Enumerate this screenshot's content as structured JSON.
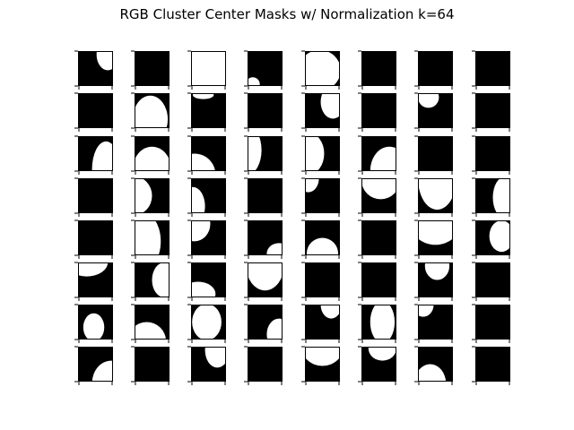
{
  "chart_data": {
    "type": "mask-grid",
    "title": "RGB Cluster Center Masks w/ Normalization k=64",
    "rows": 8,
    "cols": 8,
    "k": 64,
    "background_color": "#000000",
    "mask_color": "#ffffff",
    "panels": [
      [
        {
          "shapes": [
            {
              "k": "e",
              "cx": 0.85,
              "cy": 0.1,
              "rx": 0.32,
              "ry": 0.45
            }
          ]
        },
        {
          "shapes": []
        },
        {
          "shapes": [
            {
              "k": "r",
              "x0": 0,
              "y0": 0,
              "x1": 1,
              "y1": 1
            }
          ]
        },
        {
          "shapes": [
            {
              "k": "e",
              "cx": 0.15,
              "cy": 0.95,
              "rx": 0.2,
              "ry": 0.2
            }
          ]
        },
        {
          "shapes": [
            {
              "k": "e",
              "cx": 0.42,
              "cy": 0.55,
              "rx": 0.6,
              "ry": 0.58
            }
          ]
        },
        {
          "shapes": []
        },
        {
          "shapes": []
        },
        {
          "shapes": []
        }
      ],
      [
        {
          "shapes": []
        },
        {
          "shapes": [
            {
              "k": "e",
              "cx": 0.45,
              "cy": 0.75,
              "rx": 0.5,
              "ry": 0.68
            }
          ]
        },
        {
          "shapes": [
            {
              "k": "e",
              "cx": 0.35,
              "cy": 0.05,
              "rx": 0.3,
              "ry": 0.12
            }
          ]
        },
        {
          "shapes": []
        },
        {
          "shapes": [
            {
              "k": "e",
              "cx": 0.8,
              "cy": 0.25,
              "rx": 0.35,
              "ry": 0.48
            }
          ]
        },
        {
          "shapes": []
        },
        {
          "shapes": [
            {
              "k": "e",
              "cx": 0.3,
              "cy": 0.12,
              "rx": 0.3,
              "ry": 0.3
            }
          ]
        },
        {
          "shapes": []
        }
      ],
      [
        {
          "shapes": [
            {
              "k": "e",
              "cx": 0.8,
              "cy": 0.95,
              "rx": 0.4,
              "ry": 0.8
            }
          ]
        },
        {
          "shapes": [
            {
              "k": "e",
              "cx": 0.5,
              "cy": 0.95,
              "rx": 0.55,
              "ry": 0.65
            }
          ]
        },
        {
          "shapes": [
            {
              "k": "e",
              "cx": 0.1,
              "cy": 1.1,
              "rx": 0.6,
              "ry": 0.6
            }
          ]
        },
        {
          "shapes": [
            {
              "k": "e",
              "cx": 0.0,
              "cy": 0.4,
              "rx": 0.4,
              "ry": 0.7
            }
          ]
        },
        {
          "shapes": [
            {
              "k": "e",
              "cx": 0.1,
              "cy": 0.5,
              "rx": 0.45,
              "ry": 0.6
            }
          ]
        },
        {
          "shapes": [
            {
              "k": "e",
              "cx": 0.8,
              "cy": 1.0,
              "rx": 0.55,
              "ry": 0.7
            }
          ]
        },
        {
          "shapes": []
        },
        {
          "shapes": []
        }
      ],
      [
        {
          "shapes": []
        },
        {
          "shapes": [
            {
              "k": "e",
              "cx": 0.0,
              "cy": 0.5,
              "rx": 0.5,
              "ry": 0.55
            }
          ]
        },
        {
          "shapes": [
            {
              "k": "e",
              "cx": 0.05,
              "cy": 0.8,
              "rx": 0.35,
              "ry": 0.55
            }
          ]
        },
        {
          "shapes": []
        },
        {
          "shapes": [
            {
              "k": "e",
              "cx": 0.1,
              "cy": 0.0,
              "rx": 0.3,
              "ry": 0.4
            }
          ]
        },
        {
          "shapes": [
            {
              "k": "e",
              "cx": 0.55,
              "cy": 0.05,
              "rx": 0.55,
              "ry": 0.55
            }
          ]
        },
        {
          "shapes": [
            {
              "k": "e",
              "cx": 0.55,
              "cy": 0.0,
              "rx": 0.55,
              "ry": 0.9
            }
          ]
        },
        {
          "shapes": [
            {
              "k": "e",
              "cx": 0.85,
              "cy": 0.55,
              "rx": 0.35,
              "ry": 0.6
            }
          ]
        }
      ],
      [
        {
          "shapes": []
        },
        {
          "shapes": [
            {
              "k": "e",
              "cx": 0.2,
              "cy": 0.6,
              "rx": 0.55,
              "ry": 0.85
            }
          ]
        },
        {
          "shapes": [
            {
              "k": "e",
              "cx": 0.1,
              "cy": 0.1,
              "rx": 0.45,
              "ry": 0.5
            }
          ]
        },
        {
          "shapes": [
            {
              "k": "e",
              "cx": 0.9,
              "cy": 0.95,
              "rx": 0.35,
              "ry": 0.3
            }
          ]
        },
        {
          "shapes": [
            {
              "k": "e",
              "cx": 0.5,
              "cy": 0.95,
              "rx": 0.45,
              "ry": 0.45
            }
          ]
        },
        {
          "shapes": []
        },
        {
          "shapes": [
            {
              "k": "e",
              "cx": 0.5,
              "cy": 0.0,
              "rx": 0.75,
              "ry": 0.7
            }
          ]
        },
        {
          "shapes": [
            {
              "k": "e",
              "cx": 0.75,
              "cy": 0.45,
              "rx": 0.35,
              "ry": 0.45
            }
          ]
        }
      ],
      [
        {
          "shapes": [
            {
              "k": "e",
              "cx": 0.25,
              "cy": 0.0,
              "rx": 0.6,
              "ry": 0.4
            }
          ]
        },
        {
          "shapes": [
            {
              "k": "e",
              "cx": 0.85,
              "cy": 0.5,
              "rx": 0.35,
              "ry": 0.5
            }
          ]
        },
        {
          "shapes": [
            {
              "k": "e",
              "cx": 0.2,
              "cy": 0.9,
              "rx": 0.5,
              "ry": 0.35
            }
          ]
        },
        {
          "shapes": [
            {
              "k": "e",
              "cx": 0.5,
              "cy": 0.05,
              "rx": 0.55,
              "ry": 0.75
            }
          ]
        },
        {
          "shapes": []
        },
        {
          "shapes": []
        },
        {
          "shapes": [
            {
              "k": "e",
              "cx": 0.55,
              "cy": 0.1,
              "rx": 0.35,
              "ry": 0.4
            }
          ]
        },
        {
          "shapes": []
        }
      ],
      [
        {
          "shapes": [
            {
              "k": "e",
              "cx": 0.45,
              "cy": 0.65,
              "rx": 0.3,
              "ry": 0.4
            }
          ]
        },
        {
          "shapes": [
            {
              "k": "e",
              "cx": 0.35,
              "cy": 1.05,
              "rx": 0.55,
              "ry": 0.55
            }
          ]
        },
        {
          "shapes": [
            {
              "k": "e",
              "cx": 0.45,
              "cy": 0.5,
              "rx": 0.42,
              "ry": 0.52
            }
          ]
        },
        {
          "shapes": [
            {
              "k": "e",
              "cx": 0.9,
              "cy": 0.85,
              "rx": 0.35,
              "ry": 0.45
            }
          ]
        },
        {
          "shapes": [
            {
              "k": "e",
              "cx": 0.75,
              "cy": 0.0,
              "rx": 0.3,
              "ry": 0.4
            }
          ]
        },
        {
          "shapes": [
            {
              "k": "e",
              "cx": 0.6,
              "cy": 0.5,
              "rx": 0.35,
              "ry": 0.6
            }
          ]
        },
        {
          "shapes": [
            {
              "k": "e",
              "cx": 0.15,
              "cy": 0.0,
              "rx": 0.3,
              "ry": 0.35
            }
          ]
        },
        {
          "shapes": []
        }
      ],
      [
        {
          "shapes": [
            {
              "k": "e",
              "cx": 0.95,
              "cy": 1.05,
              "rx": 0.55,
              "ry": 0.65
            }
          ]
        },
        {
          "shapes": []
        },
        {
          "shapes": [
            {
              "k": "e",
              "cx": 0.75,
              "cy": 0.1,
              "rx": 0.35,
              "ry": 0.5
            }
          ]
        },
        {
          "shapes": []
        },
        {
          "shapes": [
            {
              "k": "e",
              "cx": 0.5,
              "cy": 0.0,
              "rx": 0.6,
              "ry": 0.55
            }
          ]
        },
        {
          "shapes": [
            {
              "k": "e",
              "cx": 0.6,
              "cy": 0.05,
              "rx": 0.4,
              "ry": 0.35
            }
          ]
        },
        {
          "shapes": [
            {
              "k": "e",
              "cx": 0.35,
              "cy": 1.05,
              "rx": 0.45,
              "ry": 0.55
            }
          ]
        },
        {
          "shapes": []
        }
      ]
    ]
  }
}
